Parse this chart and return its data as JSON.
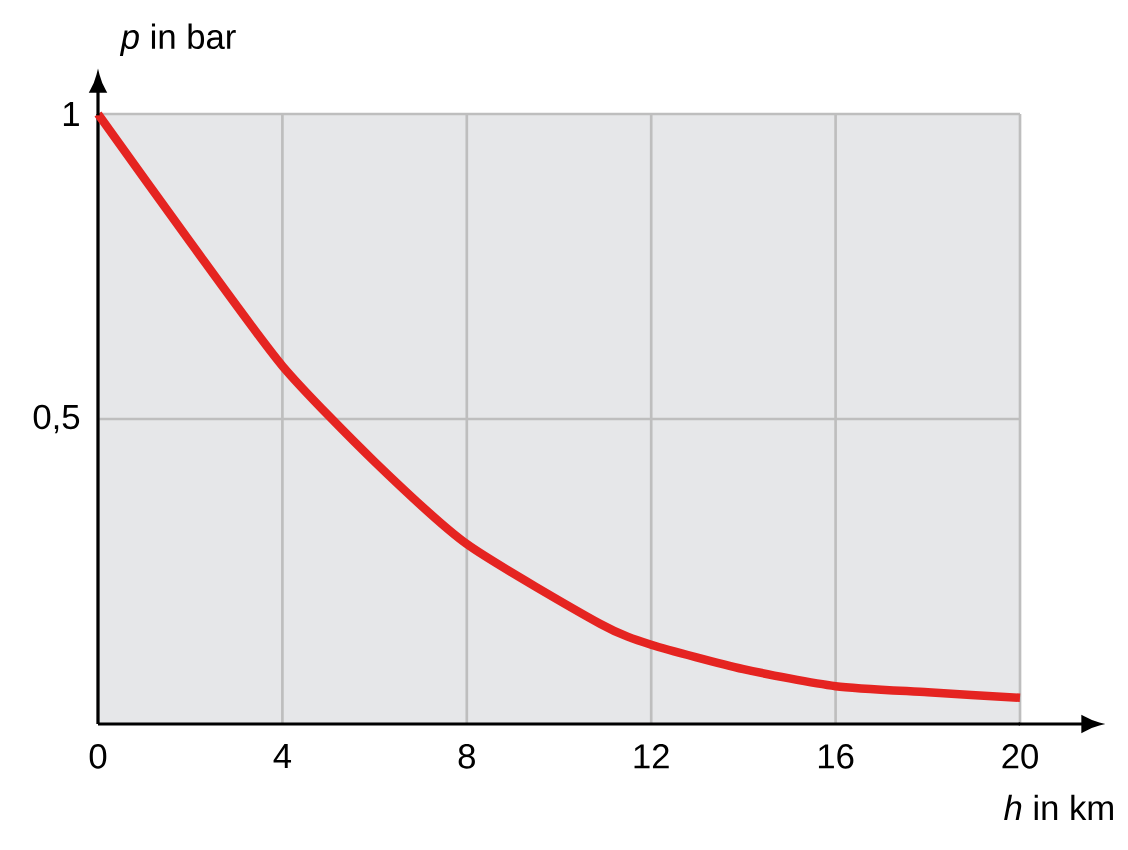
{
  "chart_data": {
    "type": "line",
    "xlabel": "*h* in km",
    "ylabel": "*p* in bar",
    "x": [
      0,
      2,
      4,
      6,
      8,
      10.9,
      12,
      14,
      16,
      18,
      20
    ],
    "series": [
      {
        "color": "#e52421",
        "values": [
          1,
          0.79,
          0.587,
          0.43,
          0.295,
          0.164,
          0.13,
          0.09,
          0.062,
          0.052,
          0.043
        ]
      }
    ],
    "xlim": [
      0,
      20
    ],
    "ylim": [
      0,
      1
    ],
    "xticks": [
      0,
      4,
      8,
      12,
      16,
      20
    ],
    "yticks": [
      {
        "value": 0.5,
        "label": "0,5"
      },
      1
    ],
    "grid": true,
    "marker": "none",
    "line_style": "solid"
  }
}
